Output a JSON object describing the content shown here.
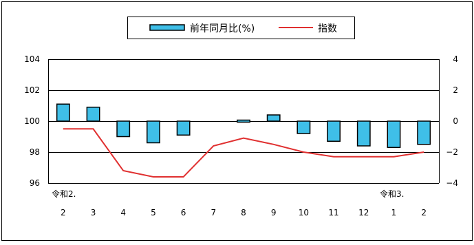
{
  "chart_data": {
    "type": "bar+line",
    "categories": [
      "2",
      "3",
      "4",
      "5",
      "6",
      "7",
      "8",
      "9",
      "10",
      "11",
      "12",
      "1",
      "2"
    ],
    "era_labels": [
      "令和2.",
      "令和3."
    ],
    "series": [
      {
        "name": "前年同月比(%)",
        "type": "bar",
        "axis": "right",
        "values": [
          1.1,
          0.9,
          -1.0,
          -1.4,
          -0.9,
          null,
          -0.1,
          0.4,
          -0.8,
          -1.3,
          -1.6,
          -1.7,
          -1.5
        ]
      },
      {
        "name": "指数",
        "type": "line",
        "axis": "left",
        "values": [
          99.5,
          99.5,
          96.8,
          96.4,
          96.4,
          98.4,
          98.9,
          98.5,
          98.0,
          97.7,
          97.7,
          97.7,
          98.0
        ]
      }
    ],
    "left_axis": {
      "ylim": [
        96,
        104
      ],
      "ticks": [
        "96",
        "98",
        "100",
        "102",
        "104"
      ]
    },
    "right_axis": {
      "ylim": [
        -4,
        4
      ],
      "ticks": [
        "−4",
        "−2",
        "0",
        "2",
        "4"
      ]
    },
    "legend": {
      "position": "top-center"
    },
    "grid": true,
    "colors": {
      "bar_fill": "#3fbfe8",
      "bar_stroke": "#000000",
      "line": "#e03030",
      "grid": "#000000"
    }
  }
}
